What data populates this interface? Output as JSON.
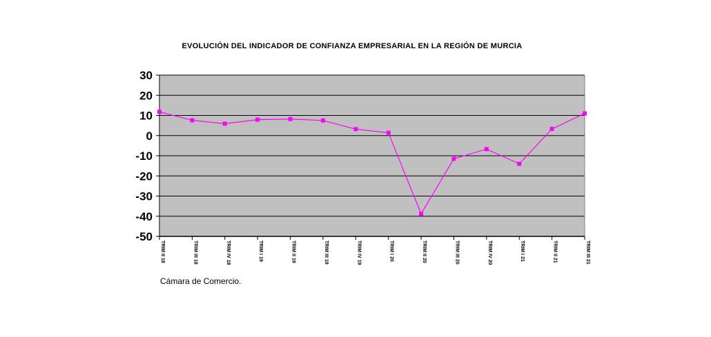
{
  "chart_data": {
    "type": "line",
    "title": "EVOLUCIÓN DEL INDICADOR DE CONFIANZA EMPRESARIAL EN LA REGIÓN DE MURCIA",
    "xlabel": "",
    "ylabel": "",
    "ylim": [
      -50,
      30
    ],
    "yticks": [
      "30",
      "20",
      "10",
      "0",
      "-10",
      "-20",
      "-30",
      "-40",
      "-50"
    ],
    "grid": true,
    "categories": [
      "TRIM II 18",
      "TRIM III 18",
      "TRIM IV 18",
      "TRIM I 19",
      "TRIM II 19",
      "TRIM III 19",
      "TRIM IV 19",
      "TRIM I 20",
      "TRIM II 20",
      "TRIM III 20",
      "TRIM IV 20",
      "TRIM I 21",
      "TRIM II 21",
      "TRIM III 21"
    ],
    "series": [
      {
        "values": [
          11.8,
          7.6,
          5.9,
          7.9,
          8.2,
          7.5,
          3.2,
          1.4,
          -38.8,
          -11.5,
          -6.7,
          -14.0,
          3.3,
          11.0
        ]
      }
    ],
    "colors": {
      "plot_bg": "#c0c0c0",
      "line": "#ff00ff",
      "grid": "#000000"
    }
  },
  "source": "Cámara de Comercio."
}
